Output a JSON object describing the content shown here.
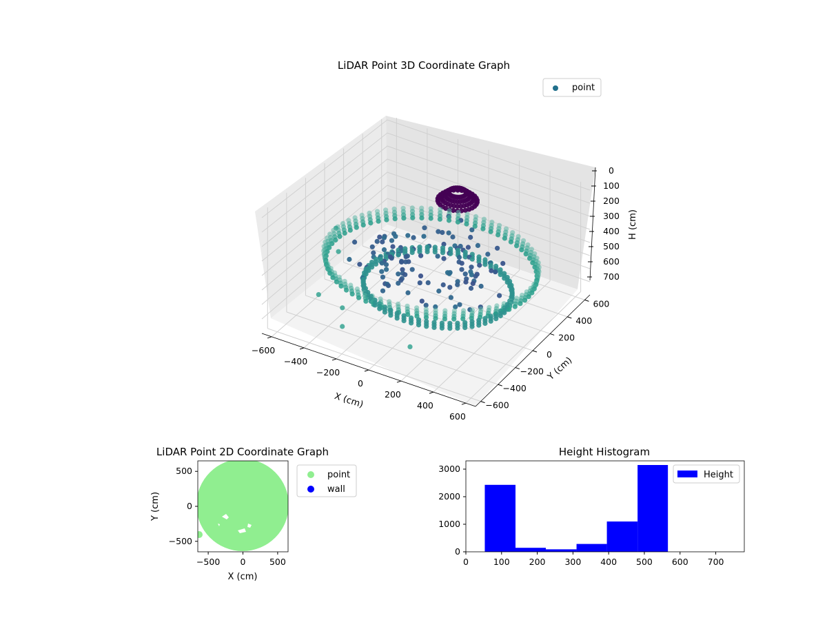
{
  "chart_data": [
    {
      "type": "scatter3d",
      "title": "LiDAR Point 3D Coordinate Graph",
      "xlabel": "X (cm)",
      "ylabel": "Y (cm)",
      "zlabel": "H (cm)",
      "x_ticks": [
        "−600",
        "−400",
        "−200",
        "0",
        "200",
        "400",
        "600"
      ],
      "y_ticks": [
        "−600",
        "−400",
        "−200",
        "0",
        "200",
        "400",
        "600"
      ],
      "z_ticks": [
        "0",
        "100",
        "200",
        "300",
        "400",
        "500",
        "600",
        "700"
      ],
      "legend": [
        {
          "label": "point",
          "color": "#21708c"
        }
      ],
      "legend_position": "top-right",
      "colormap": "viridis",
      "z_inverted": true,
      "grid": true,
      "structures": [
        {
          "name": "outer ring",
          "radius": 600,
          "height": 450,
          "color": "#2a9f8c"
        },
        {
          "name": "inner ring",
          "radius": 420,
          "height": 560,
          "color": "#30928f"
        },
        {
          "name": "central cluster",
          "radius": 110,
          "height": 230,
          "color": "#440154"
        },
        {
          "name": "scattered points",
          "height_range": [
            380,
            560
          ],
          "color": "#3b528b"
        }
      ],
      "outlier_points": [
        {
          "x": -660,
          "y": 120,
          "h": 500
        },
        {
          "x": -560,
          "y": -20,
          "h": 550
        },
        {
          "x": -460,
          "y": -400,
          "h": 600
        },
        {
          "x": -300,
          "y": -420,
          "h": 620
        },
        {
          "x": -220,
          "y": -560,
          "h": 640
        },
        {
          "x": 200,
          "y": -560,
          "h": 620
        }
      ]
    },
    {
      "type": "scatter",
      "title": "LiDAR Point 2D Coordinate Graph",
      "xlabel": "X (cm)",
      "ylabel": "Y (cm)",
      "x_ticks": [
        "−500",
        "0",
        "500"
      ],
      "y_ticks": [
        "500",
        "0",
        "−500"
      ],
      "xlim": [
        -650,
        650
      ],
      "ylim": [
        -650,
        650
      ],
      "legend_position": "outside-right",
      "series": [
        {
          "name": "point",
          "color": "#90ee90",
          "coverage_radius": 660
        },
        {
          "name": "wall",
          "color": "#0000ff",
          "points": []
        }
      ]
    },
    {
      "type": "bar",
      "title": "Height Histogram",
      "xlabel": "",
      "ylabel": "",
      "x_ticks": [
        "0",
        "100",
        "200",
        "300",
        "400",
        "500",
        "600",
        "700"
      ],
      "y_ticks": [
        "0",
        "1000",
        "2000",
        "3000"
      ],
      "xlim": [
        0,
        780
      ],
      "ylim": [
        0,
        3300
      ],
      "legend_position": "top-right",
      "series": [
        {
          "name": "Height",
          "color": "#0000ff",
          "bins": [
            {
              "x0": 53,
              "x1": 139,
              "value": 2430
            },
            {
              "x0": 139,
              "x1": 224,
              "value": 145
            },
            {
              "x0": 224,
              "x1": 310,
              "value": 90
            },
            {
              "x0": 310,
              "x1": 395,
              "value": 285
            },
            {
              "x0": 395,
              "x1": 481,
              "value": 1100
            },
            {
              "x0": 481,
              "x1": 566,
              "value": 3150
            }
          ]
        }
      ]
    }
  ]
}
